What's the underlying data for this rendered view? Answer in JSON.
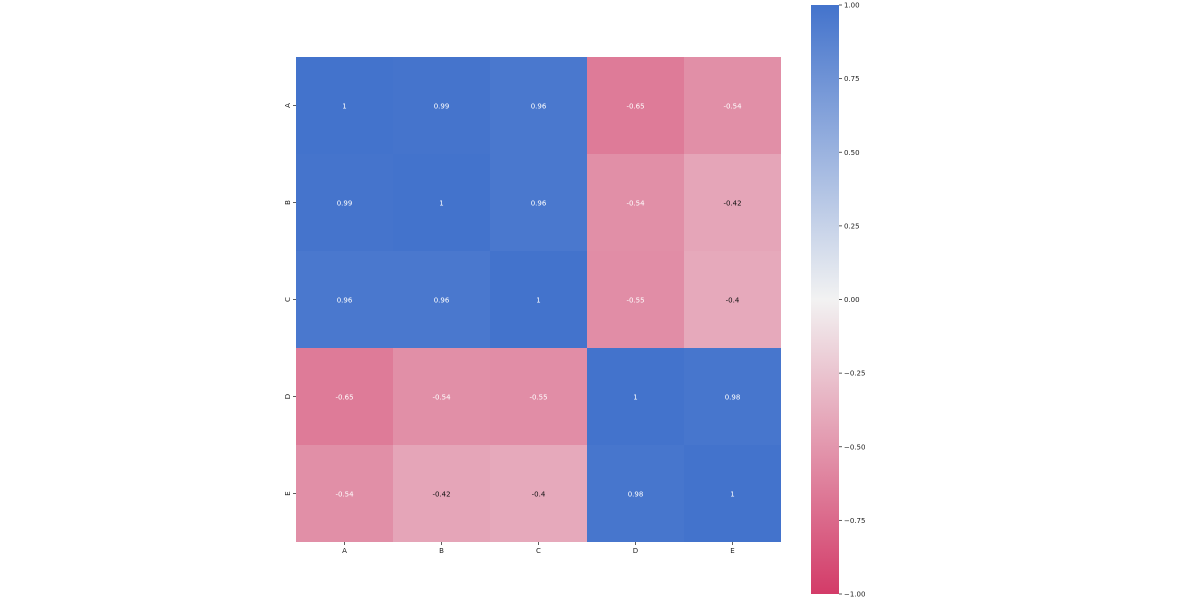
{
  "chart_data": {
    "type": "heatmap",
    "title": "",
    "xlabel": "",
    "ylabel": "",
    "x_categories": [
      "A",
      "B",
      "C",
      "D",
      "E"
    ],
    "y_categories": [
      "A",
      "B",
      "C",
      "D",
      "E"
    ],
    "values": [
      [
        1,
        0.99,
        0.96,
        -0.65,
        -0.54
      ],
      [
        0.99,
        1,
        0.96,
        -0.54,
        -0.42
      ],
      [
        0.96,
        0.96,
        1,
        -0.55,
        -0.4
      ],
      [
        -0.65,
        -0.54,
        -0.55,
        1,
        0.98
      ],
      [
        -0.54,
        -0.42,
        -0.4,
        0.98,
        1
      ]
    ],
    "value_labels": [
      [
        "1",
        "0.99",
        "0.96",
        "-0.65",
        "-0.54"
      ],
      [
        "0.99",
        "1",
        "0.96",
        "-0.54",
        "-0.42"
      ],
      [
        "0.96",
        "0.96",
        "1",
        "-0.55",
        "-0.4"
      ],
      [
        "-0.65",
        "-0.54",
        "-0.55",
        "1",
        "0.98"
      ],
      [
        "-0.54",
        "-0.42",
        "-0.4",
        "0.98",
        "1"
      ]
    ],
    "colorbar": {
      "range": [
        -1,
        1
      ],
      "ticks": [
        1,
        0.75,
        0.5,
        0.25,
        0,
        -0.25,
        -0.5,
        -0.75,
        -1
      ],
      "tick_labels": [
        "1.00",
        "0.75",
        "0.50",
        "0.25",
        "0.00",
        "−0.25",
        "−0.50",
        "−0.75",
        "−1.00"
      ],
      "colors": {
        "positive": "#4373CC",
        "center": "#F2F2F2",
        "negative": "#D33B68"
      }
    }
  }
}
